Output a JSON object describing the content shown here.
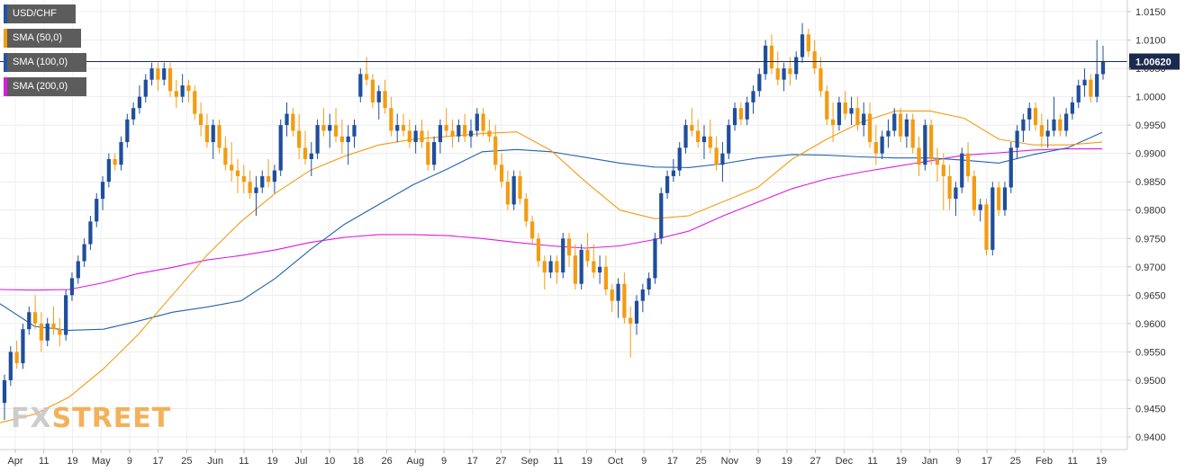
{
  "chart_data": {
    "type": "candlestick",
    "title": "USD/CHF",
    "interval": "daily",
    "colors": {
      "up": "#1f4e9c",
      "down": "#f39c12",
      "sma50": "#f39c12",
      "sma100": "#2163b0",
      "sma200": "#e018e0",
      "current_line": "#1a2a4f"
    },
    "y_ticks": [
      "1.0150",
      "1.0100",
      "1.0050",
      "1.0000",
      "0.9950",
      "0.9900",
      "0.9850",
      "0.9800",
      "0.9750",
      "0.9700",
      "0.9650",
      "0.9600",
      "0.9550",
      "0.9500",
      "0.9450",
      "0.9400"
    ],
    "ylim": [
      0.9385,
      1.0165
    ],
    "x_ticks": [
      "Apr",
      "11",
      "19",
      "May",
      "9",
      "17",
      "25",
      "Jun",
      "11",
      "19",
      "Jul",
      "10",
      "18",
      "26",
      "Aug",
      "9",
      "17",
      "27",
      "Sep",
      "11",
      "19",
      "Oct",
      "9",
      "17",
      "25",
      "Nov",
      "9",
      "19",
      "27",
      "Dec",
      "11",
      "19",
      "Jan",
      "9",
      "17",
      "25",
      "Feb",
      "11",
      "19"
    ],
    "current_price": "1.00620",
    "legend": [
      {
        "label": "USD/CHF",
        "color": "#2255a5"
      },
      {
        "label": "SMA (50,0)",
        "color": "#f39c12"
      },
      {
        "label": "SMA (100,0)",
        "color": "#2255a5"
      },
      {
        "label": "SMA (200,0)",
        "color": "#e018e0"
      }
    ],
    "sma_50": [
      0.9425,
      0.944,
      0.947,
      0.952,
      0.958,
      0.965,
      0.972,
      0.978,
      0.983,
      0.987,
      0.9895,
      0.9915,
      0.9925,
      0.993,
      0.9935,
      0.9938,
      0.9905,
      0.985,
      0.98,
      0.9785,
      0.979,
      0.9815,
      0.984,
      0.989,
      0.9925,
      0.9955,
      0.9975,
      0.9975,
      0.9962,
      0.9925,
      0.9915,
      0.9915,
      0.992
    ],
    "sma_100": [
      0.9635,
      0.9595,
      0.9588,
      0.959,
      0.9604,
      0.962,
      0.9629,
      0.964,
      0.968,
      0.973,
      0.9775,
      0.981,
      0.9845,
      0.9873,
      0.9903,
      0.9907,
      0.9903,
      0.9893,
      0.9883,
      0.9876,
      0.9875,
      0.9882,
      0.9892,
      0.9898,
      0.9897,
      0.9894,
      0.9892,
      0.9892,
      0.9888,
      0.9883,
      0.9898,
      0.991,
      0.9937
    ],
    "sma_200": [
      0.966,
      0.9659,
      0.966,
      0.9672,
      0.9688,
      0.9699,
      0.9712,
      0.972,
      0.973,
      0.9743,
      0.9752,
      0.9757,
      0.9757,
      0.9755,
      0.975,
      0.9743,
      0.9737,
      0.9733,
      0.9737,
      0.9748,
      0.9763,
      0.979,
      0.9814,
      0.9838,
      0.9855,
      0.9867,
      0.9877,
      0.9887,
      0.9897,
      0.9901,
      0.9906,
      0.9908,
      0.9908
    ],
    "candles": [
      [
        0.946,
        0.951,
        0.943,
        0.95
      ],
      [
        0.95,
        0.956,
        0.949,
        0.955
      ],
      [
        0.955,
        0.957,
        0.952,
        0.953
      ],
      [
        0.953,
        0.96,
        0.952,
        0.959
      ],
      [
        0.959,
        0.963,
        0.958,
        0.962
      ],
      [
        0.962,
        0.965,
        0.959,
        0.96
      ],
      [
        0.96,
        0.962,
        0.955,
        0.957
      ],
      [
        0.957,
        0.961,
        0.956,
        0.96
      ],
      [
        0.96,
        0.963,
        0.958,
        0.959
      ],
      [
        0.959,
        0.961,
        0.956,
        0.958
      ],
      [
        0.958,
        0.966,
        0.957,
        0.965
      ],
      [
        0.965,
        0.969,
        0.964,
        0.968
      ],
      [
        0.968,
        0.972,
        0.967,
        0.971
      ],
      [
        0.971,
        0.975,
        0.97,
        0.974
      ],
      [
        0.974,
        0.979,
        0.973,
        0.978
      ],
      [
        0.978,
        0.983,
        0.977,
        0.982
      ],
      [
        0.982,
        0.986,
        0.98,
        0.985
      ],
      [
        0.985,
        0.99,
        0.984,
        0.989
      ],
      [
        0.989,
        0.99,
        0.987,
        0.988
      ],
      [
        0.988,
        0.993,
        0.987,
        0.992
      ],
      [
        0.992,
        0.997,
        0.991,
        0.996
      ],
      [
        0.996,
        0.999,
        0.995,
        0.998
      ],
      [
        0.998,
        1.002,
        0.997,
        1.0
      ],
      [
        1.0,
        1.004,
        0.999,
        1.003
      ],
      [
        1.003,
        1.006,
        1.002,
        1.005
      ],
      [
        1.005,
        1.006,
        1.001,
        1.003
      ],
      [
        1.003,
        1.006,
        1.002,
        1.005
      ],
      [
        1.005,
        1.006,
        1.0,
        1.001
      ],
      [
        1.001,
        1.003,
        0.998,
        1.0
      ],
      [
        1.0,
        1.004,
        0.999,
        1.002
      ],
      [
        1.002,
        1.003,
        0.999,
        1.001
      ],
      [
        1.001,
        1.002,
        0.996,
        0.997
      ],
      [
        0.997,
        0.999,
        0.993,
        0.995
      ],
      [
        0.995,
        0.997,
        0.991,
        0.992
      ],
      [
        0.992,
        0.996,
        0.989,
        0.995
      ],
      [
        0.995,
        0.996,
        0.99,
        0.991
      ],
      [
        0.991,
        0.993,
        0.987,
        0.988
      ],
      [
        0.988,
        0.992,
        0.985,
        0.987
      ],
      [
        0.987,
        0.989,
        0.983,
        0.986
      ],
      [
        0.986,
        0.988,
        0.983,
        0.985
      ],
      [
        0.985,
        0.987,
        0.982,
        0.983
      ],
      [
        0.983,
        0.986,
        0.979,
        0.984
      ],
      [
        0.984,
        0.987,
        0.983,
        0.986
      ],
      [
        0.986,
        0.989,
        0.984,
        0.985
      ],
      [
        0.985,
        0.988,
        0.983,
        0.987
      ],
      [
        0.987,
        0.996,
        0.986,
        0.995
      ],
      [
        0.995,
        0.999,
        0.993,
        0.997
      ],
      [
        0.997,
        0.998,
        0.993,
        0.994
      ],
      [
        0.994,
        0.997,
        0.989,
        0.991
      ],
      [
        0.991,
        0.994,
        0.988,
        0.989
      ],
      [
        0.989,
        0.992,
        0.986,
        0.99
      ],
      [
        0.99,
        0.996,
        0.989,
        0.995
      ],
      [
        0.995,
        0.998,
        0.993,
        0.994
      ],
      [
        0.994,
        0.997,
        0.991,
        0.995
      ],
      [
        0.995,
        0.998,
        0.992,
        0.993
      ],
      [
        0.993,
        0.996,
        0.99,
        0.992
      ],
      [
        0.992,
        0.995,
        0.988,
        0.993
      ],
      [
        0.993,
        0.996,
        0.991,
        0.995
      ],
      [
        1.0,
        1.005,
        0.999,
        1.004
      ],
      [
        1.004,
        1.007,
        1.002,
        1.003
      ],
      [
        1.003,
        1.004,
        0.998,
        0.999
      ],
      [
        0.999,
        1.002,
        0.996,
        1.001
      ],
      [
        1.001,
        1.003,
        0.997,
        0.998
      ],
      [
        0.998,
        1.0,
        0.993,
        0.994
      ],
      [
        0.994,
        0.997,
        0.992,
        0.995
      ],
      [
        0.995,
        0.997,
        0.993,
        0.994
      ],
      [
        0.994,
        0.996,
        0.991,
        0.992
      ],
      [
        0.992,
        0.995,
        0.99,
        0.994
      ],
      [
        0.994,
        0.996,
        0.991,
        0.992
      ],
      [
        0.992,
        0.994,
        0.987,
        0.988
      ],
      [
        0.988,
        0.993,
        0.987,
        0.992
      ],
      [
        0.992,
        0.996,
        0.99,
        0.995
      ],
      [
        0.995,
        0.998,
        0.993,
        0.994
      ],
      [
        0.994,
        0.996,
        0.991,
        0.993
      ],
      [
        0.993,
        0.996,
        0.992,
        0.995
      ],
      [
        0.995,
        0.997,
        0.992,
        0.993
      ],
      [
        0.993,
        0.996,
        0.991,
        0.994
      ],
      [
        0.994,
        0.998,
        0.993,
        0.997
      ],
      [
        0.997,
        0.998,
        0.993,
        0.994
      ],
      [
        0.994,
        0.996,
        0.992,
        0.993
      ],
      [
        0.993,
        0.995,
        0.987,
        0.988
      ],
      [
        0.988,
        0.99,
        0.984,
        0.985
      ],
      [
        0.985,
        0.987,
        0.98,
        0.981
      ],
      [
        0.981,
        0.987,
        0.98,
        0.986
      ],
      [
        0.986,
        0.987,
        0.981,
        0.982
      ],
      [
        0.982,
        0.983,
        0.977,
        0.978
      ],
      [
        0.978,
        0.979,
        0.974,
        0.975
      ],
      [
        0.975,
        0.976,
        0.97,
        0.971
      ],
      [
        0.971,
        0.972,
        0.966,
        0.969
      ],
      [
        0.969,
        0.972,
        0.968,
        0.971
      ],
      [
        0.971,
        0.972,
        0.967,
        0.969
      ],
      [
        0.969,
        0.976,
        0.968,
        0.975
      ],
      [
        0.975,
        0.976,
        0.97,
        0.972
      ],
      [
        0.972,
        0.974,
        0.966,
        0.967
      ],
      [
        0.967,
        0.974,
        0.966,
        0.973
      ],
      [
        0.973,
        0.976,
        0.97,
        0.971
      ],
      [
        0.971,
        0.974,
        0.968,
        0.969
      ],
      [
        0.969,
        0.972,
        0.967,
        0.97
      ],
      [
        0.97,
        0.972,
        0.965,
        0.966
      ],
      [
        0.966,
        0.967,
        0.962,
        0.964
      ],
      [
        0.964,
        0.968,
        0.961,
        0.967
      ],
      [
        0.967,
        0.969,
        0.96,
        0.961
      ],
      [
        0.961,
        0.963,
        0.954,
        0.96
      ],
      [
        0.96,
        0.965,
        0.958,
        0.964
      ],
      [
        0.964,
        0.967,
        0.962,
        0.966
      ],
      [
        0.966,
        0.969,
        0.965,
        0.968
      ],
      [
        0.968,
        0.976,
        0.967,
        0.975
      ],
      [
        0.975,
        0.984,
        0.974,
        0.983
      ],
      [
        0.983,
        0.987,
        0.982,
        0.986
      ],
      [
        0.986,
        0.989,
        0.985,
        0.987
      ],
      [
        0.987,
        0.992,
        0.986,
        0.991
      ],
      [
        0.991,
        0.996,
        0.99,
        0.995
      ],
      [
        0.995,
        0.998,
        0.993,
        0.994
      ],
      [
        0.994,
        0.996,
        0.991,
        0.992
      ],
      [
        0.992,
        0.995,
        0.989,
        0.993
      ],
      [
        0.993,
        0.996,
        0.99,
        0.991
      ],
      [
        0.991,
        0.993,
        0.987,
        0.988
      ],
      [
        0.988,
        0.992,
        0.985,
        0.99
      ],
      [
        0.99,
        0.996,
        0.989,
        0.995
      ],
      [
        0.995,
        0.999,
        0.994,
        0.998
      ],
      [
        0.998,
        0.999,
        0.995,
        0.996
      ],
      [
        0.996,
        1.0,
        0.995,
        0.999
      ],
      [
        0.999,
        1.002,
        0.997,
        1.001
      ],
      [
        1.001,
        1.005,
        1.0,
        1.004
      ],
      [
        1.004,
        1.01,
        1.003,
        1.009
      ],
      [
        1.009,
        1.011,
        1.004,
        1.005
      ],
      [
        1.005,
        1.008,
        1.002,
        1.003
      ],
      [
        1.003,
        1.006,
        1.001,
        1.005
      ],
      [
        1.005,
        1.007,
        1.002,
        1.004
      ],
      [
        1.004,
        1.008,
        1.003,
        1.007
      ],
      [
        1.007,
        1.013,
        1.006,
        1.011
      ],
      [
        1.011,
        1.012,
        1.007,
        1.008
      ],
      [
        1.008,
        1.01,
        1.004,
        1.005
      ],
      [
        1.005,
        1.007,
        1.0,
        1.001
      ],
      [
        1.001,
        1.002,
        0.995,
        0.996
      ],
      [
        0.996,
        0.999,
        0.992,
        0.995
      ],
      [
        0.995,
        1.0,
        0.994,
        0.999
      ],
      [
        0.999,
        1.001,
        0.996,
        0.997
      ],
      [
        0.997,
        1.0,
        0.995,
        0.998
      ],
      [
        0.998,
        1.0,
        0.994,
        0.995
      ],
      [
        0.995,
        0.999,
        0.993,
        0.997
      ],
      [
        0.997,
        0.999,
        0.991,
        0.992
      ],
      [
        0.992,
        0.995,
        0.988,
        0.99
      ],
      [
        0.99,
        0.994,
        0.989,
        0.993
      ],
      [
        0.993,
        0.996,
        0.991,
        0.994
      ],
      [
        0.994,
        0.998,
        0.993,
        0.997
      ],
      [
        0.997,
        0.998,
        0.992,
        0.993
      ],
      [
        0.993,
        0.997,
        0.991,
        0.996
      ],
      [
        0.996,
        0.997,
        0.99,
        0.991
      ],
      [
        0.991,
        0.993,
        0.986,
        0.988
      ],
      [
        0.988,
        0.996,
        0.987,
        0.995
      ],
      [
        0.995,
        0.996,
        0.988,
        0.989
      ],
      [
        0.989,
        0.991,
        0.985,
        0.988
      ],
      [
        0.988,
        0.99,
        0.98,
        0.986
      ],
      [
        0.986,
        0.988,
        0.98,
        0.982
      ],
      [
        0.982,
        0.985,
        0.979,
        0.984
      ],
      [
        0.984,
        0.991,
        0.983,
        0.99
      ],
      [
        0.99,
        0.992,
        0.985,
        0.986
      ],
      [
        0.986,
        0.987,
        0.979,
        0.98
      ],
      [
        0.98,
        0.982,
        0.978,
        0.981
      ],
      [
        0.981,
        0.982,
        0.972,
        0.973
      ],
      [
        0.973,
        0.985,
        0.972,
        0.984
      ],
      [
        0.984,
        0.985,
        0.979,
        0.98
      ],
      [
        0.98,
        0.985,
        0.979,
        0.984
      ],
      [
        0.984,
        0.992,
        0.983,
        0.991
      ],
      [
        0.991,
        0.995,
        0.989,
        0.994
      ],
      [
        0.994,
        0.997,
        0.992,
        0.996
      ],
      [
        0.996,
        0.999,
        0.994,
        0.998
      ],
      [
        0.998,
        0.999,
        0.994,
        0.995
      ],
      [
        0.995,
        0.997,
        0.991,
        0.993
      ],
      [
        0.993,
        0.996,
        0.991,
        0.994
      ],
      [
        0.994,
        1.0,
        0.993,
        0.996
      ],
      [
        0.996,
        0.997,
        0.993,
        0.994
      ],
      [
        0.994,
        0.998,
        0.993,
        0.997
      ],
      [
        0.997,
        1.0,
        0.996,
        0.999
      ],
      [
        0.999,
        1.003,
        0.998,
        1.002
      ],
      [
        1.002,
        1.005,
        1.0,
        1.003
      ],
      [
        1.003,
        1.004,
        0.999,
        1.0
      ],
      [
        1.0,
        1.01,
        0.999,
        1.004
      ],
      [
        1.004,
        1.009,
        1.003,
        1.0062
      ]
    ]
  }
}
